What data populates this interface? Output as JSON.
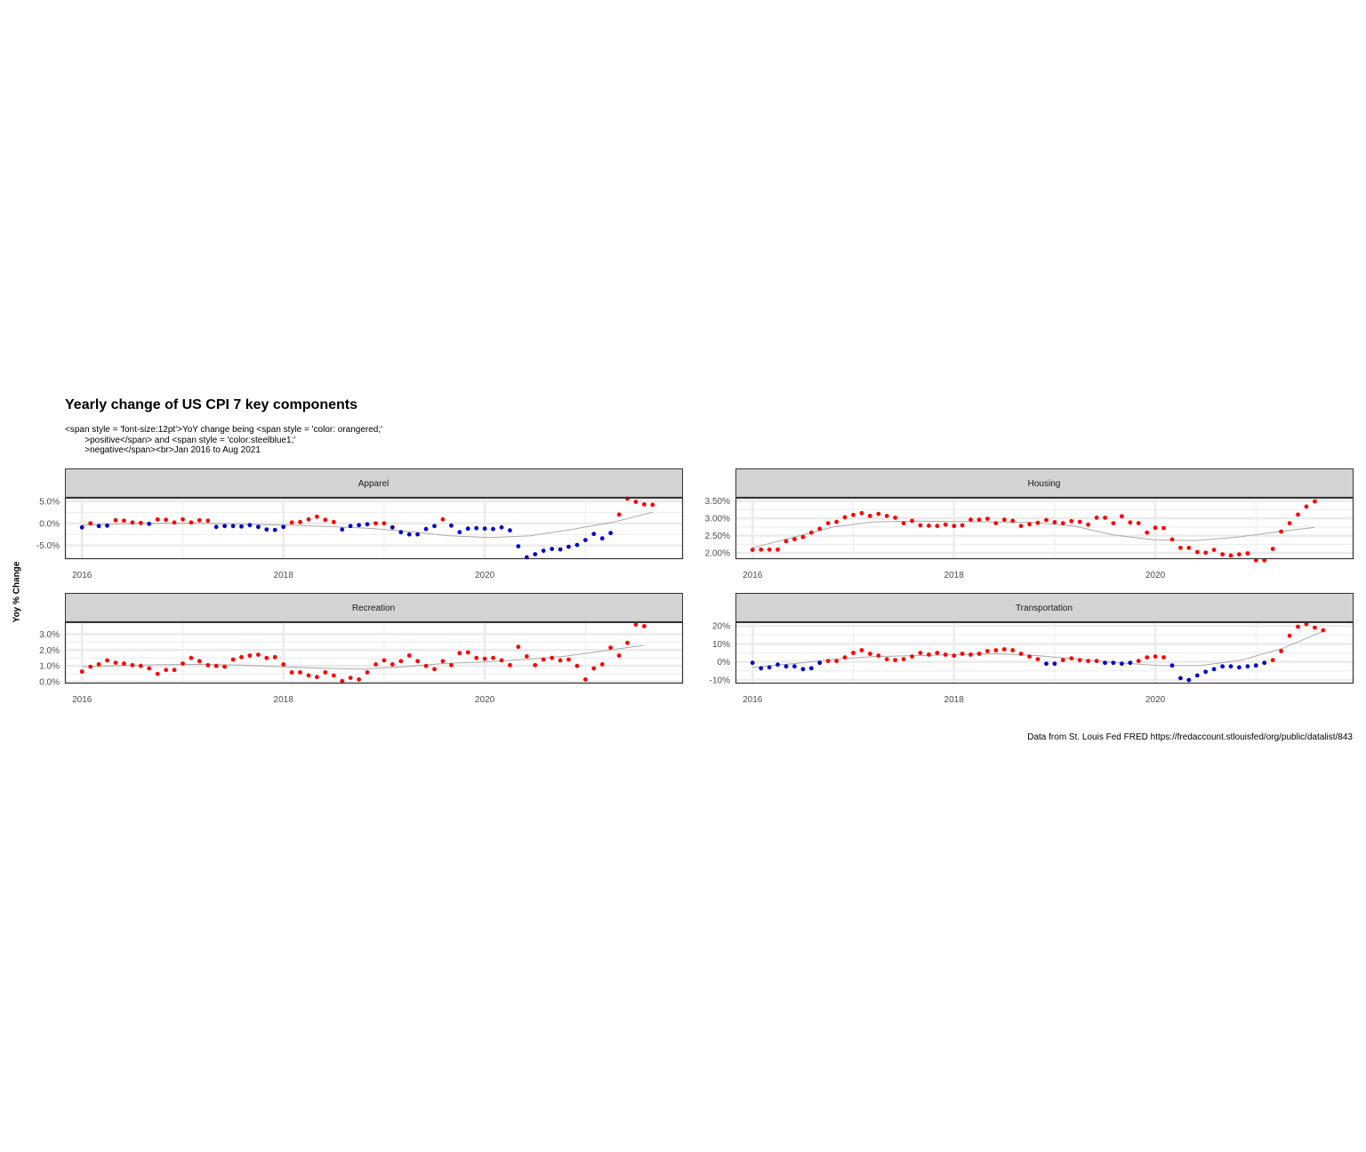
{
  "title": "Yearly change of US CPI 7 key components",
  "subtitle": "<span style = 'font-size:12pt'>YoY change being <span style = 'color: orangered;'\n        >positive</span> and <span style = 'color:steelblue1;'\n        >negative</span><br>Jan 2016 to Aug 2021",
  "caption": "Data from St. Louis Fed FRED\nhttps://fredaccount.stlouisfed/org/public/datalist/843",
  "ylabel": "Yoy % Change",
  "colors": {
    "positive": "#ff0000",
    "negative": "#0000cd",
    "smooth": "#a9a9a9",
    "strip": "#d3d3d3",
    "grid": "#ebebeb"
  },
  "chart_data": [
    {
      "type": "scatter",
      "panel": "Apparel",
      "x_start": "2016-01",
      "x_step": "1 month",
      "x_ticks": [
        "2016",
        "2018",
        "2020"
      ],
      "xlim": [
        2015.83,
        2021.96
      ],
      "ylim": [
        -7.9,
        6.0
      ],
      "y_ticks": [
        -5,
        0,
        5
      ],
      "y_tick_labels": [
        "-5.0%",
        "0.0%",
        "5.0%"
      ],
      "values": [
        -0.9,
        0.0,
        -0.6,
        -0.5,
        0.7,
        0.6,
        0.2,
        0.1,
        -0.1,
        0.9,
        0.8,
        0.2,
        0.9,
        0.2,
        0.7,
        0.6,
        -0.8,
        -0.6,
        -0.6,
        -0.7,
        -0.4,
        -0.8,
        -1.4,
        -1.5,
        -0.8,
        0.2,
        0.3,
        0.9,
        1.5,
        0.8,
        0.3,
        -1.4,
        -0.6,
        -0.4,
        -0.2,
        0.0,
        0.0,
        -0.9,
        -2.0,
        -2.5,
        -2.5,
        -1.3,
        -0.6,
        0.9,
        -0.5,
        -2.0,
        -1.2,
        -1.1,
        -1.2,
        -1.3,
        -0.9,
        -1.6,
        -5.2,
        -7.7,
        -7.0,
        -6.2,
        -5.8,
        -5.9,
        -5.3,
        -4.9,
        -3.8,
        -2.4,
        -3.4,
        -2.2,
        2.0,
        5.6,
        4.9,
        4.3,
        4.2
      ],
      "smooth": [
        -0.4,
        -0.1,
        0.0,
        0.0,
        -0.2,
        -0.4,
        -0.7,
        -1.1,
        -1.8,
        -2.8,
        -3.2,
        -2.8,
        -1.4,
        0.2,
        2.5
      ]
    },
    {
      "type": "scatter",
      "panel": "Housing",
      "x_start": "2016-01",
      "x_step": "1 month",
      "x_ticks": [
        "2016",
        "2018",
        "2020"
      ],
      "xlim": [
        2015.83,
        2021.96
      ],
      "ylim": [
        1.85,
        3.62
      ],
      "y_ticks": [
        2.0,
        2.5,
        3.0,
        3.5
      ],
      "y_tick_labels": [
        "2.00%",
        "2.50%",
        "3.00%",
        "3.50%"
      ],
      "values": [
        2.09,
        2.1,
        2.1,
        2.1,
        2.34,
        2.4,
        2.46,
        2.59,
        2.7,
        2.86,
        2.9,
        3.03,
        3.1,
        3.15,
        3.07,
        3.13,
        3.07,
        3.02,
        2.86,
        2.93,
        2.8,
        2.79,
        2.78,
        2.82,
        2.78,
        2.8,
        2.96,
        2.96,
        2.99,
        2.86,
        2.96,
        2.93,
        2.78,
        2.83,
        2.87,
        2.95,
        2.89,
        2.86,
        2.92,
        2.9,
        2.82,
        3.02,
        3.02,
        2.86,
        3.06,
        2.88,
        2.86,
        2.59,
        2.73,
        2.72,
        2.39,
        2.15,
        2.15,
        2.03,
        2.01,
        2.09,
        1.96,
        1.93,
        1.96,
        1.99,
        1.79,
        1.79,
        2.12,
        2.62,
        2.86,
        3.11,
        3.34,
        3.49
      ],
      "smooth": [
        2.15,
        2.45,
        2.75,
        2.9,
        2.92,
        2.91,
        2.9,
        2.88,
        2.78,
        2.52,
        2.38,
        2.36,
        2.45,
        2.6,
        2.74
      ]
    },
    {
      "type": "scatter",
      "panel": "Recreation",
      "x_start": "2016-01",
      "x_step": "1 month",
      "x_ticks": [
        "2016",
        "2018",
        "2020"
      ],
      "xlim": [
        2015.83,
        2021.96
      ],
      "ylim": [
        -0.05,
        3.8
      ],
      "y_ticks": [
        0,
        1,
        2,
        3
      ],
      "y_tick_labels": [
        "0.0%",
        "1.0%",
        "2.0%",
        "3.0%"
      ],
      "values": [
        0.65,
        0.95,
        1.1,
        1.35,
        1.2,
        1.15,
        1.05,
        1.0,
        0.85,
        0.5,
        0.75,
        0.75,
        1.15,
        1.5,
        1.3,
        1.05,
        1.0,
        0.95,
        1.4,
        1.55,
        1.65,
        1.7,
        1.5,
        1.55,
        1.1,
        0.6,
        0.6,
        0.4,
        0.3,
        0.6,
        0.4,
        0.05,
        0.25,
        0.15,
        0.6,
        1.1,
        1.35,
        1.1,
        1.3,
        1.65,
        1.3,
        1.0,
        0.8,
        1.3,
        1.05,
        1.8,
        1.85,
        1.5,
        1.45,
        1.5,
        1.35,
        1.05,
        2.2,
        1.6,
        1.05,
        1.4,
        1.5,
        1.35,
        1.4,
        1.0,
        0.15,
        0.85,
        1.1,
        2.15,
        1.65,
        2.45,
        3.6,
        3.5
      ],
      "smooth": [
        0.95,
        1.02,
        1.08,
        1.1,
        1.05,
        0.95,
        0.85,
        0.8,
        0.95,
        1.15,
        1.25,
        1.4,
        1.6,
        1.95,
        2.3
      ]
    },
    {
      "type": "scatter",
      "panel": "Transportation",
      "x_start": "2016-01",
      "x_step": "1 month",
      "x_ticks": [
        "2016",
        "2018",
        "2020"
      ],
      "xlim": [
        2015.83,
        2021.96
      ],
      "ylim": [
        -11.5,
        22.5
      ],
      "y_ticks": [
        -10,
        0,
        10,
        20
      ],
      "y_tick_labels": [
        "-10%",
        "0%",
        "10%",
        "20%"
      ],
      "values": [
        -0.5,
        -3.5,
        -3.0,
        -1.5,
        -2.5,
        -2.5,
        -4.0,
        -3.5,
        -0.5,
        0.5,
        0.5,
        2.5,
        5.0,
        6.5,
        4.5,
        3.5,
        1.5,
        1.0,
        1.5,
        3.0,
        5.0,
        4.0,
        5.0,
        4.0,
        3.5,
        4.5,
        4.0,
        4.5,
        6.0,
        6.5,
        7.0,
        6.5,
        4.5,
        3.0,
        1.5,
        -1.0,
        -1.0,
        1.0,
        2.0,
        1.0,
        0.5,
        0.5,
        -0.5,
        -0.5,
        -1.0,
        -0.5,
        0.5,
        2.5,
        3.0,
        2.5,
        -2.0,
        -9.0,
        -10.0,
        -7.5,
        -5.5,
        -4.0,
        -2.5,
        -2.5,
        -3.0,
        -2.5,
        -2.0,
        -0.5,
        1.0,
        6.0,
        14.5,
        19.5,
        21.0,
        19.0,
        17.5
      ],
      "smooth": [
        -3.0,
        -1.0,
        1.5,
        3.0,
        3.5,
        4.0,
        4.5,
        3.5,
        1.5,
        -0.5,
        -2.0,
        -2.0,
        1.0,
        7.5,
        17.0
      ]
    }
  ]
}
